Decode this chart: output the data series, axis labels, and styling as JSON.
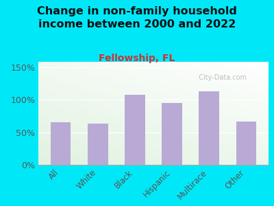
{
  "title": "Change in non-family household\nincome between 2000 and 2022",
  "subtitle": "Fellowship, FL",
  "categories": [
    "All",
    "White",
    "Black",
    "Hispanic",
    "Multirace",
    "Other"
  ],
  "values": [
    65,
    63,
    107,
    95,
    113,
    66
  ],
  "bar_color": "#b8aad4",
  "title_fontsize": 11.5,
  "subtitle_fontsize": 10,
  "subtitle_color": "#cc3333",
  "title_color": "#111111",
  "background_outer": "#00e8f8",
  "yticks": [
    0,
    50,
    100,
    150
  ],
  "ylim": [
    0,
    158
  ],
  "watermark": "  City-Data.com"
}
